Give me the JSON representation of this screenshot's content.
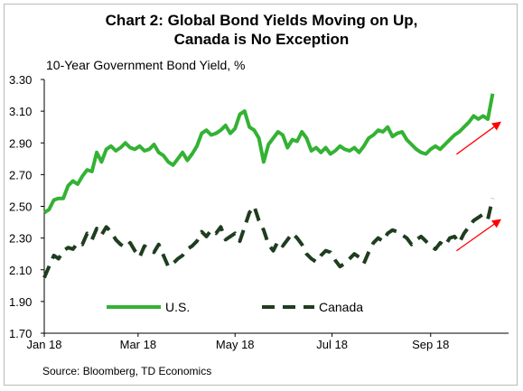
{
  "title_line1": "Chart 2: Global Bond Yields Moving on Up,",
  "title_line2": "Canada is No Exception",
  "source": "Source: Bloomberg, TD Economics",
  "chart_data": {
    "type": "line",
    "title": "Chart 2: Global Bond Yields Moving on Up, Canada is No Exception",
    "ylabel": "10-Year Government Bond Yield, %",
    "xlabel": "",
    "ylim": [
      1.7,
      3.3
    ],
    "yticks": [
      "1.70",
      "1.90",
      "2.10",
      "2.30",
      "2.50",
      "2.70",
      "2.90",
      "3.10",
      "3.30"
    ],
    "xticks": [
      {
        "label": "Jan 18",
        "day": 0
      },
      {
        "label": "Mar 18",
        "day": 59
      },
      {
        "label": "May 18",
        "day": 120
      },
      {
        "label": "Jul 18",
        "day": 181
      },
      {
        "label": "Sep 18",
        "day": 243
      }
    ],
    "grid": false,
    "legend": "bottom-left",
    "series": [
      {
        "name": "U.S.",
        "color": "#33b233",
        "style": "solid",
        "x": [
          0,
          3,
          6,
          9,
          12,
          15,
          18,
          21,
          24,
          27,
          30,
          33,
          36,
          39,
          42,
          45,
          48,
          51,
          54,
          57,
          60,
          63,
          66,
          69,
          72,
          75,
          78,
          81,
          84,
          87,
          90,
          93,
          96,
          99,
          102,
          105,
          108,
          111,
          114,
          117,
          120,
          123,
          126,
          129,
          132,
          135,
          138,
          141,
          144,
          147,
          150,
          153,
          156,
          159,
          162,
          165,
          168,
          171,
          174,
          177,
          180,
          183,
          186,
          189,
          192,
          195,
          198,
          201,
          204,
          207,
          210,
          213,
          216,
          219,
          222,
          225,
          228,
          231,
          234,
          237,
          240,
          243,
          246,
          249,
          252,
          255,
          258,
          261,
          264,
          267,
          270,
          273,
          276,
          279,
          282
        ],
        "y": [
          2.46,
          2.48,
          2.54,
          2.55,
          2.55,
          2.63,
          2.66,
          2.64,
          2.69,
          2.73,
          2.72,
          2.84,
          2.78,
          2.86,
          2.88,
          2.85,
          2.87,
          2.9,
          2.87,
          2.86,
          2.88,
          2.85,
          2.86,
          2.89,
          2.84,
          2.82,
          2.78,
          2.76,
          2.8,
          2.84,
          2.79,
          2.83,
          2.88,
          2.96,
          2.98,
          2.95,
          2.96,
          2.98,
          3.01,
          2.96,
          2.99,
          3.08,
          3.1,
          3.0,
          2.98,
          2.93,
          2.78,
          2.89,
          2.93,
          2.97,
          2.95,
          2.87,
          2.92,
          2.91,
          2.97,
          2.93,
          2.85,
          2.87,
          2.84,
          2.87,
          2.83,
          2.85,
          2.88,
          2.86,
          2.85,
          2.87,
          2.84,
          2.88,
          2.93,
          2.95,
          2.98,
          2.97,
          3.0,
          2.94,
          2.96,
          2.97,
          2.92,
          2.89,
          2.86,
          2.84,
          2.83,
          2.86,
          2.88,
          2.86,
          2.89,
          2.92,
          2.95,
          2.97,
          3.0,
          3.03,
          3.07,
          3.05,
          3.07,
          3.05,
          3.21
        ]
      },
      {
        "name": "Canada",
        "color": "#1f3d1f",
        "style": "dashed",
        "x": [
          0,
          3,
          6,
          9,
          12,
          15,
          18,
          21,
          24,
          27,
          30,
          33,
          36,
          39,
          42,
          45,
          48,
          51,
          54,
          57,
          60,
          63,
          66,
          69,
          72,
          75,
          78,
          81,
          84,
          87,
          90,
          93,
          96,
          99,
          102,
          105,
          108,
          111,
          114,
          117,
          120,
          123,
          126,
          129,
          132,
          135,
          138,
          141,
          144,
          147,
          150,
          153,
          156,
          159,
          162,
          165,
          168,
          171,
          174,
          177,
          180,
          183,
          186,
          189,
          192,
          195,
          198,
          201,
          204,
          207,
          210,
          213,
          216,
          219,
          222,
          225,
          228,
          231,
          234,
          237,
          240,
          243,
          246,
          249,
          252,
          255,
          258,
          261,
          264,
          267,
          270,
          273,
          276,
          279,
          282
        ],
        "y": [
          2.05,
          2.12,
          2.19,
          2.17,
          2.22,
          2.24,
          2.23,
          2.27,
          2.26,
          2.33,
          2.29,
          2.36,
          2.32,
          2.37,
          2.34,
          2.29,
          2.26,
          2.24,
          2.27,
          2.22,
          2.18,
          2.25,
          2.23,
          2.21,
          2.26,
          2.19,
          2.12,
          2.14,
          2.17,
          2.19,
          2.23,
          2.25,
          2.28,
          2.34,
          2.31,
          2.35,
          2.33,
          2.37,
          2.29,
          2.31,
          2.33,
          2.28,
          2.37,
          2.46,
          2.5,
          2.41,
          2.35,
          2.26,
          2.22,
          2.28,
          2.25,
          2.29,
          2.33,
          2.3,
          2.26,
          2.2,
          2.17,
          2.15,
          2.19,
          2.22,
          2.21,
          2.16,
          2.12,
          2.14,
          2.17,
          2.2,
          2.18,
          2.14,
          2.21,
          2.27,
          2.3,
          2.28,
          2.33,
          2.35,
          2.34,
          2.32,
          2.3,
          2.26,
          2.29,
          2.31,
          2.28,
          2.25,
          2.23,
          2.27,
          2.25,
          2.3,
          2.31,
          2.27,
          2.33,
          2.37,
          2.41,
          2.43,
          2.45,
          2.42,
          2.55
        ]
      }
    ],
    "annotations": [
      {
        "type": "arrow",
        "color": "#ff0000",
        "near_series": "U.S."
      },
      {
        "type": "arrow",
        "color": "#ff0000",
        "near_series": "Canada"
      }
    ]
  }
}
